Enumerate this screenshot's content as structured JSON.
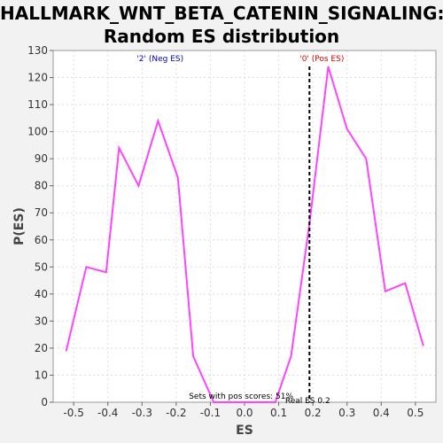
{
  "chart_data": {
    "type": "line",
    "title": "HALLMARK_WNT_BETA_CATENIN_SIGNALING:",
    "subtitle": "Random ES distribution",
    "xlabel": "ES",
    "ylabel": "P(ES)",
    "xlim": [
      -0.56,
      0.56
    ],
    "ylim": [
      0,
      130
    ],
    "xticks": [
      -0.5,
      -0.4,
      -0.3,
      -0.2,
      -0.1,
      0.0,
      0.1,
      0.2,
      0.3,
      0.4,
      0.5
    ],
    "xtick_labels": [
      "-0.5",
      "-0.4",
      "-0.3",
      "-0.2",
      "-0.1",
      "0.0",
      "0.1",
      "0.2",
      "0.3",
      "0.4",
      "0.5"
    ],
    "yticks": [
      0,
      10,
      20,
      30,
      40,
      50,
      60,
      70,
      80,
      90,
      100,
      110,
      120,
      130
    ],
    "grid": true,
    "series": [
      {
        "color": "#ff44ff",
        "x": [
          -0.522,
          -0.463,
          -0.405,
          -0.367,
          -0.31,
          -0.253,
          -0.195,
          -0.15,
          -0.09,
          -0.03,
          0.03,
          0.09,
          0.136,
          0.19,
          0.245,
          0.3,
          0.356,
          0.412,
          0.47,
          0.523
        ],
        "y": [
          19,
          50,
          48,
          94,
          80,
          104,
          83,
          17,
          0,
          0,
          0,
          0,
          17,
          66,
          124,
          101,
          90,
          41,
          44,
          21
        ]
      }
    ],
    "real_es": {
      "x": 0.19,
      "label": "Real ES 0.2",
      "color": "#000000"
    },
    "annotations": {
      "neg_label": "'2' (Neg ES)",
      "neg_color": "#0000cc",
      "pos_label": "'0' (Pos ES)",
      "pos_color": "#dd0000",
      "pos_scores_text": "Sets with pos scores: 51%"
    }
  }
}
